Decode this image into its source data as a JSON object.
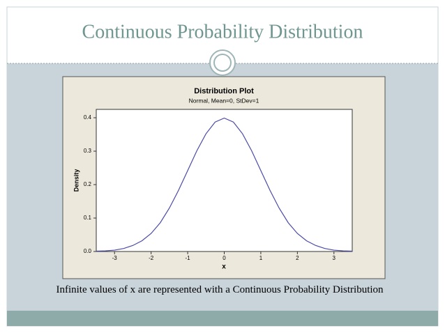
{
  "slide": {
    "title": "Continuous Probability Distribution",
    "caption": "Infinite values of x are represented with a Continuous Probability Distribution"
  },
  "chart_data": {
    "type": "line",
    "title": "Distribution Plot",
    "subtitle": "Normal, Mean=0, StDev=1",
    "x_label": "x",
    "y_label": "Density",
    "color": "#4a4aa8",
    "x": [
      -3.5,
      -3.25,
      -3,
      -2.75,
      -2.5,
      -2.25,
      -2,
      -1.75,
      -1.5,
      -1.25,
      -1,
      -0.75,
      -0.5,
      -0.25,
      0,
      0.25,
      0.5,
      0.75,
      1,
      1.25,
      1.5,
      1.75,
      2,
      2.25,
      2.5,
      2.75,
      3,
      3.25,
      3.5
    ],
    "values": [
      0.001,
      0.002,
      0.004,
      0.009,
      0.018,
      0.032,
      0.054,
      0.086,
      0.13,
      0.183,
      0.242,
      0.301,
      0.352,
      0.387,
      0.399,
      0.387,
      0.352,
      0.301,
      0.242,
      0.183,
      0.13,
      0.086,
      0.054,
      0.032,
      0.018,
      0.009,
      0.004,
      0.002,
      0.001
    ],
    "xlim": [
      -3.5,
      3.5
    ],
    "xticks": [
      -3,
      -2,
      -1,
      0,
      1,
      2,
      3
    ],
    "ylim": [
      0,
      0.425
    ],
    "yticks": [
      {
        "value": 0,
        "label": "0.0"
      },
      0.1,
      0.2,
      0.3,
      0.4
    ]
  }
}
